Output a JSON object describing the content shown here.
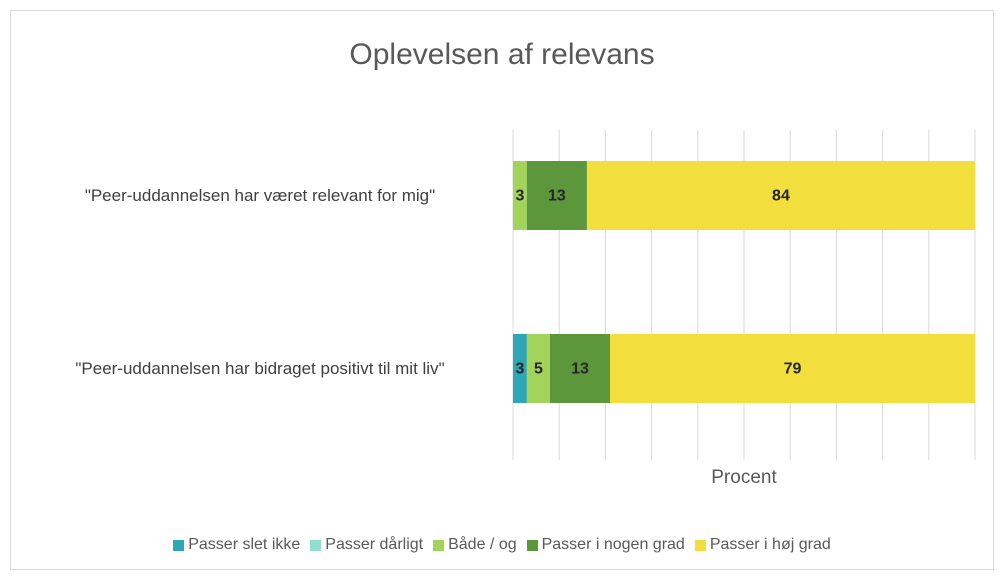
{
  "chart_data": {
    "type": "stacked_barh",
    "title": "Oplevelsen af relevans",
    "xlabel": "Procent",
    "categories": [
      "\"Peer-uddannelsen har været relevant for mig\"",
      "\"Peer-uddannelsen har bidraget positivt til mit liv\""
    ],
    "series": [
      {
        "name": "Passer slet ikke",
        "color": "#2fa6b5",
        "values": [
          0,
          3
        ]
      },
      {
        "name": "Passer dårligt",
        "color": "#8fdecf",
        "values": [
          0,
          0
        ]
      },
      {
        "name": "Både / og",
        "color": "#a2d35a",
        "values": [
          3,
          5
        ]
      },
      {
        "name": "Passer i nogen grad",
        "color": "#5c973b",
        "values": [
          13,
          13
        ]
      },
      {
        "name": "Passer i høj grad",
        "color": "#f2de3c",
        "values": [
          84,
          79
        ]
      }
    ],
    "xlim": [
      0,
      100
    ],
    "xticks": [
      0,
      10,
      20,
      30,
      40,
      50,
      60,
      70,
      80,
      90,
      100
    ],
    "grid": true,
    "legend": "bottom"
  }
}
